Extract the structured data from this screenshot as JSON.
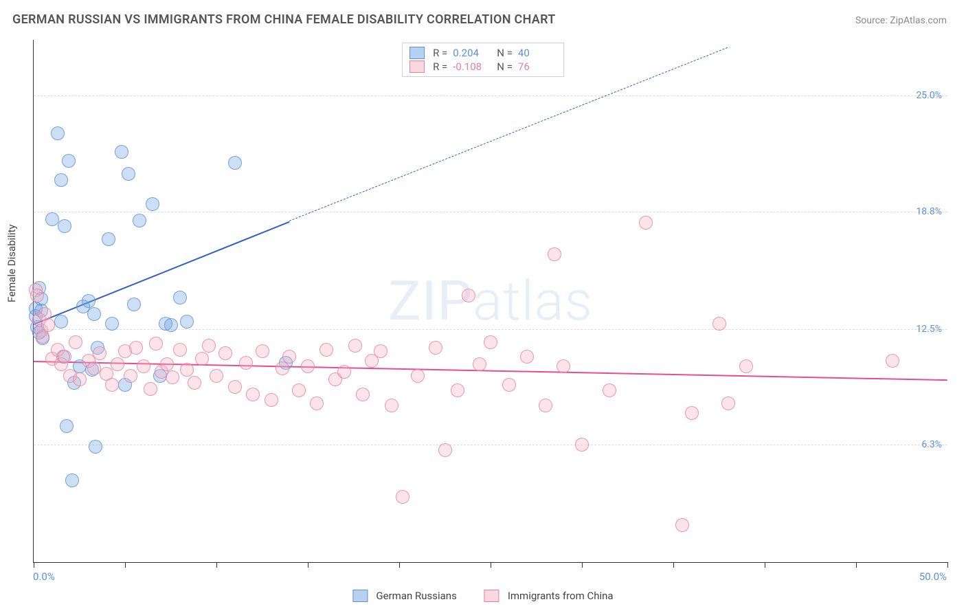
{
  "title": "GERMAN RUSSIAN VS IMMIGRANTS FROM CHINA FEMALE DISABILITY CORRELATION CHART",
  "source_label": "Source:",
  "source_name": "ZipAtlas.com",
  "watermark_a": "ZIP",
  "watermark_b": "atlas",
  "ylabel": "Female Disability",
  "chart": {
    "type": "scatter",
    "background_color": "#ffffff",
    "grid_color": "#dddddd",
    "axis_color": "#333333",
    "xlim": [
      0,
      50
    ],
    "ylim": [
      0,
      28
    ],
    "xlim_labels": [
      "0.0%",
      "50.0%"
    ],
    "ytick_values": [
      6.3,
      12.5,
      18.8,
      25.0
    ],
    "ytick_labels": [
      "6.3%",
      "12.5%",
      "18.8%",
      "25.0%"
    ],
    "xtick_values": [
      0,
      5,
      10,
      15,
      20,
      25,
      30,
      35,
      40,
      45,
      50
    ],
    "marker_radius": 9,
    "marker_fill_opacity": 0.35,
    "marker_stroke_opacity": 0.8,
    "marker_stroke_width": 1.3,
    "label_fontsize": 15,
    "title_fontsize": 18
  },
  "series": [
    {
      "key": "german_russians",
      "label": "German Russians",
      "color": "#6fa3e0",
      "stroke": "#5b8fd9",
      "r_label": "R =",
      "r_value": "0.204",
      "n_label": "N =",
      "n_value": "40",
      "trend": {
        "x1": 0,
        "y1": 12.8,
        "x2": 14,
        "y2": 18.3,
        "dash_to_x": 38,
        "dash_to_y": 27.6,
        "solid_color": "#2d62c4",
        "solid_width": 2.5,
        "dash_width": 1.3
      },
      "points": [
        [
          0.1,
          13.2
        ],
        [
          0.1,
          13.6
        ],
        [
          0.2,
          12.6
        ],
        [
          0.3,
          12.3
        ],
        [
          0.3,
          14.7
        ],
        [
          0.4,
          14.1
        ],
        [
          0.4,
          13.5
        ],
        [
          0.5,
          12.0
        ],
        [
          1.0,
          18.4
        ],
        [
          1.3,
          23.0
        ],
        [
          1.5,
          12.9
        ],
        [
          1.5,
          20.5
        ],
        [
          1.6,
          11.0
        ],
        [
          1.7,
          18.0
        ],
        [
          1.8,
          7.3
        ],
        [
          1.9,
          21.5
        ],
        [
          2.1,
          4.4
        ],
        [
          2.2,
          9.6
        ],
        [
          2.5,
          10.5
        ],
        [
          2.7,
          13.7
        ],
        [
          3.0,
          14.0
        ],
        [
          3.2,
          10.3
        ],
        [
          3.3,
          13.3
        ],
        [
          3.4,
          6.2
        ],
        [
          3.5,
          11.5
        ],
        [
          4.1,
          17.3
        ],
        [
          4.3,
          12.8
        ],
        [
          4.8,
          22.0
        ],
        [
          5.0,
          9.5
        ],
        [
          5.2,
          20.8
        ],
        [
          5.5,
          13.8
        ],
        [
          5.8,
          18.3
        ],
        [
          6.5,
          19.2
        ],
        [
          6.9,
          10.0
        ],
        [
          7.2,
          12.8
        ],
        [
          7.5,
          12.7
        ],
        [
          8.0,
          14.2
        ],
        [
          8.4,
          12.9
        ],
        [
          11.0,
          21.4
        ],
        [
          13.8,
          10.7
        ]
      ]
    },
    {
      "key": "immigrants_china",
      "label": "Immigrants from China",
      "color": "#f4b3c2",
      "stroke": "#e77ea0",
      "r_label": "R =",
      "r_value": "-0.108",
      "n_label": "N =",
      "n_value": "76",
      "trend": {
        "x1": 0,
        "y1": 10.8,
        "x2": 50,
        "y2": 9.8,
        "solid_color": "#e84d8a",
        "solid_width": 2.3
      },
      "points": [
        [
          0.1,
          14.6
        ],
        [
          0.2,
          14.3
        ],
        [
          0.3,
          13.0
        ],
        [
          0.4,
          12.4
        ],
        [
          0.5,
          12.1
        ],
        [
          0.6,
          13.3
        ],
        [
          0.8,
          12.7
        ],
        [
          1.0,
          10.9
        ],
        [
          1.3,
          11.4
        ],
        [
          1.5,
          10.6
        ],
        [
          1.7,
          11.0
        ],
        [
          2.0,
          10.0
        ],
        [
          2.3,
          11.8
        ],
        [
          2.5,
          9.8
        ],
        [
          3.0,
          10.8
        ],
        [
          3.3,
          10.4
        ],
        [
          3.6,
          11.2
        ],
        [
          4.0,
          10.1
        ],
        [
          4.3,
          9.5
        ],
        [
          4.6,
          10.6
        ],
        [
          5.0,
          11.3
        ],
        [
          5.3,
          10.0
        ],
        [
          5.6,
          11.5
        ],
        [
          6.0,
          10.5
        ],
        [
          6.4,
          9.3
        ],
        [
          6.7,
          11.7
        ],
        [
          7.0,
          10.2
        ],
        [
          7.3,
          10.6
        ],
        [
          7.6,
          9.9
        ],
        [
          8.0,
          11.4
        ],
        [
          8.4,
          10.3
        ],
        [
          8.8,
          9.6
        ],
        [
          9.2,
          10.9
        ],
        [
          9.6,
          11.6
        ],
        [
          10.0,
          10.0
        ],
        [
          10.5,
          11.2
        ],
        [
          11.0,
          9.4
        ],
        [
          11.6,
          10.7
        ],
        [
          12.0,
          9.0
        ],
        [
          12.5,
          11.3
        ],
        [
          13.0,
          8.7
        ],
        [
          13.6,
          10.4
        ],
        [
          14.0,
          11.0
        ],
        [
          14.5,
          9.2
        ],
        [
          15.0,
          10.5
        ],
        [
          15.5,
          8.5
        ],
        [
          16.0,
          11.4
        ],
        [
          16.5,
          9.8
        ],
        [
          17.0,
          10.2
        ],
        [
          17.6,
          11.6
        ],
        [
          18.0,
          9.0
        ],
        [
          18.5,
          10.8
        ],
        [
          19.0,
          11.3
        ],
        [
          19.6,
          8.4
        ],
        [
          20.2,
          3.5
        ],
        [
          21.0,
          10.0
        ],
        [
          22.0,
          11.5
        ],
        [
          22.5,
          6.0
        ],
        [
          23.2,
          9.2
        ],
        [
          23.8,
          14.3
        ],
        [
          24.4,
          10.6
        ],
        [
          25.0,
          11.8
        ],
        [
          26.0,
          9.5
        ],
        [
          27.0,
          11.0
        ],
        [
          28.0,
          8.4
        ],
        [
          28.5,
          16.5
        ],
        [
          29.0,
          10.5
        ],
        [
          30.0,
          6.3
        ],
        [
          31.5,
          9.2
        ],
        [
          33.5,
          18.2
        ],
        [
          35.5,
          2.0
        ],
        [
          36.0,
          8.0
        ],
        [
          37.5,
          12.8
        ],
        [
          38.0,
          8.5
        ],
        [
          39.0,
          10.5
        ],
        [
          47.0,
          10.8
        ]
      ]
    }
  ]
}
